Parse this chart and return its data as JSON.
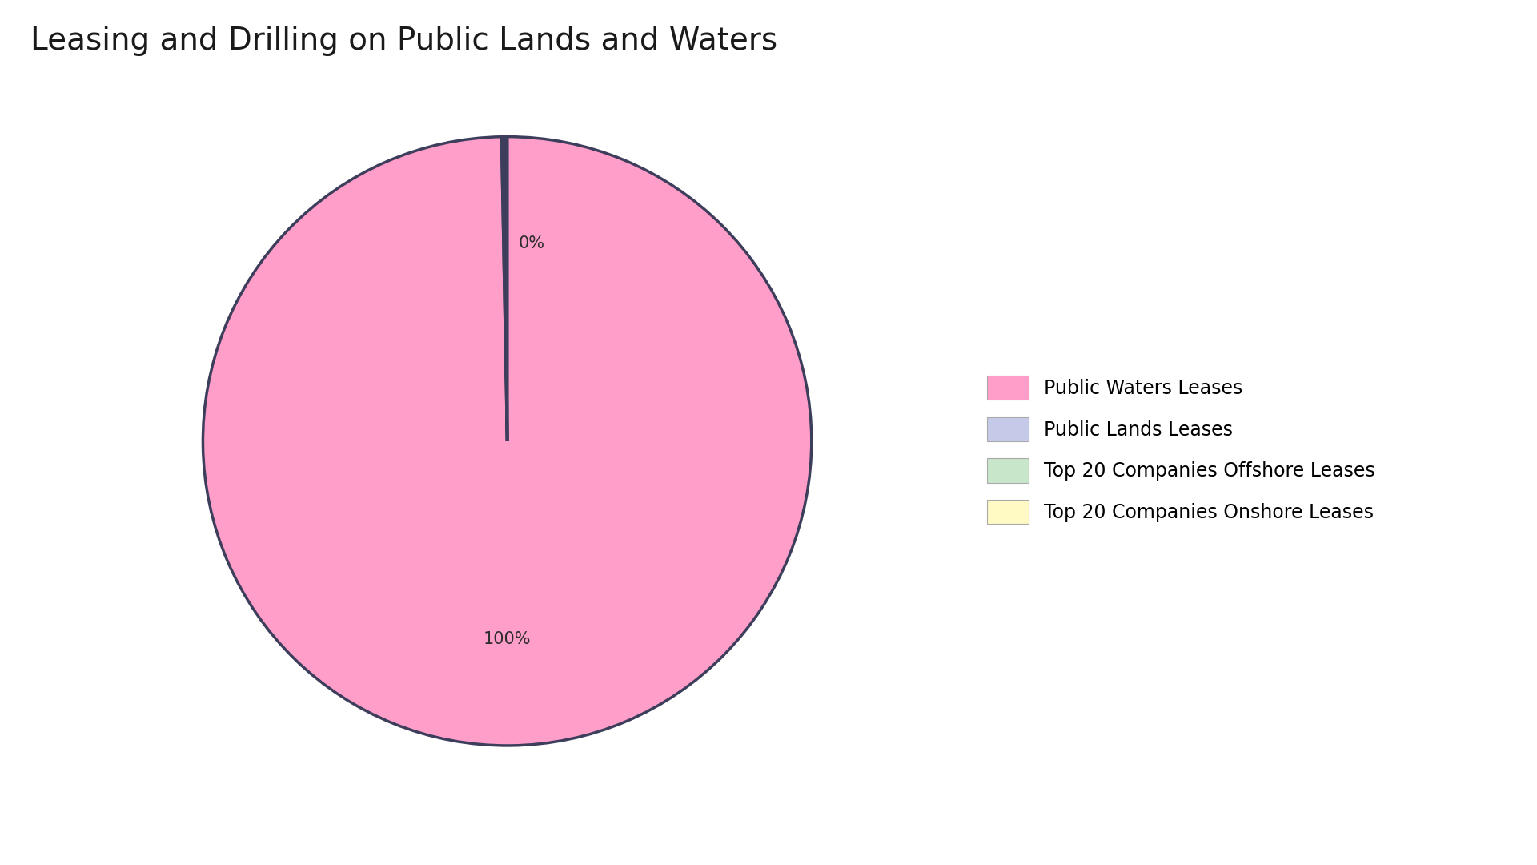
{
  "title": "Leasing and Drilling on Public Lands and Waters",
  "title_fontsize": 28,
  "background_color": "#ffffff",
  "slices": [
    {
      "label": "Public Waters Leases",
      "value": 99.7,
      "color": "#FF9EC8"
    },
    {
      "label": "Public Lands Leases",
      "value": 0.1,
      "color": "#C5CAE9"
    },
    {
      "label": "Top 20 Companies Offshore Leases",
      "value": 0.1,
      "color": "#C8E6C9"
    },
    {
      "label": "Top 20 Companies Onshore Leases",
      "value": 0.1,
      "color": "#FFF9C4"
    }
  ],
  "legend_labels": [
    "Public Waters Leases",
    "Public Lands Leases",
    "Top 20 Companies Offshore Leases",
    "Top 20 Companies Onshore Leases"
  ],
  "legend_colors": [
    "#FF9EC8",
    "#C5CAE9",
    "#C8E6C9",
    "#FFF9C4"
  ],
  "wedge_edge_color": "#3d3d5c",
  "wedge_linewidth": 2.5,
  "autopct_fontsize": 15,
  "legend_fontsize": 17,
  "text_color": "#2d2d2d"
}
